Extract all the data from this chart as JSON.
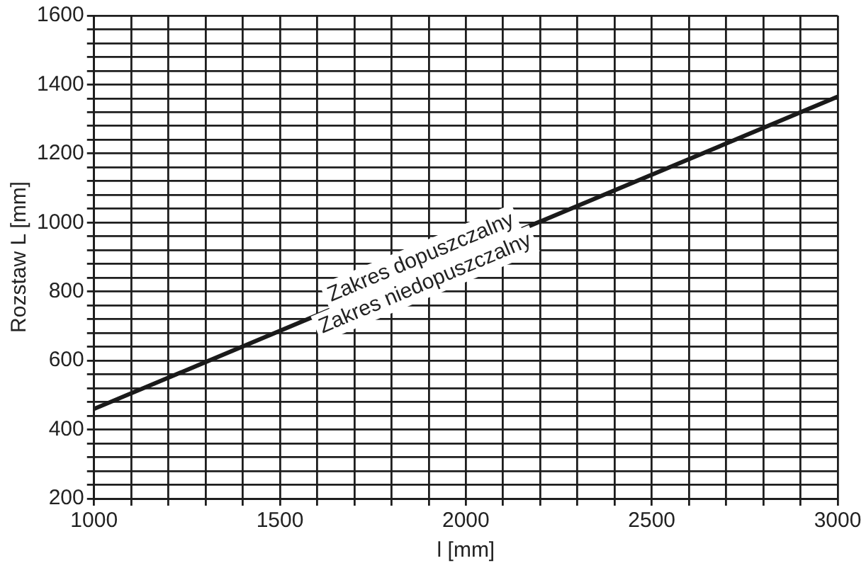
{
  "chart_data": {
    "type": "line",
    "xlabel": "l [mm]",
    "ylabel": "Rozstaw L [mm]",
    "x": [
      1000,
      3000
    ],
    "series": [
      {
        "color": "#1a1a1a",
        "values": [
          460,
          1365
        ]
      }
    ],
    "xlim": [
      1000,
      3000
    ],
    "xticks": [
      1000,
      {
        "value": 1100,
        "label": null
      },
      {
        "value": 1200,
        "label": null
      },
      {
        "value": 1300,
        "label": null
      },
      {
        "value": 1400,
        "label": null
      },
      1500,
      {
        "value": 1600,
        "label": null
      },
      {
        "value": 1700,
        "label": null
      },
      {
        "value": 1800,
        "label": null
      },
      {
        "value": 1900,
        "label": null
      },
      2000,
      {
        "value": 2100,
        "label": null
      },
      {
        "value": 2200,
        "label": null
      },
      {
        "value": 2300,
        "label": null
      },
      {
        "value": 2400,
        "label": null
      },
      2500,
      {
        "value": 2600,
        "label": null
      },
      {
        "value": 2700,
        "label": null
      },
      {
        "value": 2800,
        "label": null
      },
      {
        "value": 2900,
        "label": null
      },
      3000
    ],
    "ylim": [
      200,
      1600
    ],
    "yticks": [
      200,
      {
        "value": 240,
        "label": null
      },
      {
        "value": 280,
        "label": null
      },
      {
        "value": 320,
        "label": null
      },
      {
        "value": 360,
        "label": null
      },
      400,
      {
        "value": 440,
        "label": null
      },
      {
        "value": 480,
        "label": null
      },
      {
        "value": 520,
        "label": null
      },
      {
        "value": 560,
        "label": null
      },
      600,
      {
        "value": 640,
        "label": null
      },
      {
        "value": 680,
        "label": null
      },
      {
        "value": 720,
        "label": null
      },
      {
        "value": 760,
        "label": null
      },
      800,
      {
        "value": 840,
        "label": null
      },
      {
        "value": 880,
        "label": null
      },
      {
        "value": 920,
        "label": null
      },
      {
        "value": 960,
        "label": null
      },
      1000,
      {
        "value": 1040,
        "label": null
      },
      {
        "value": 1080,
        "label": null
      },
      {
        "value": 1120,
        "label": null
      },
      {
        "value": 1160,
        "label": null
      },
      1200,
      {
        "value": 1240,
        "label": null
      },
      {
        "value": 1280,
        "label": null
      },
      {
        "value": 1320,
        "label": null
      },
      {
        "value": 1360,
        "label": null
      },
      1400,
      {
        "value": 1440,
        "label": null
      },
      {
        "value": 1480,
        "label": null
      },
      {
        "value": 1520,
        "label": null
      },
      {
        "value": 1560,
        "label": null
      },
      1600
    ],
    "grid": true,
    "legend": false,
    "marker": "none",
    "line_style": "solid",
    "annotations": [
      "Zakres dopuszczalny",
      "Zakres niedopuszczalny"
    ]
  }
}
